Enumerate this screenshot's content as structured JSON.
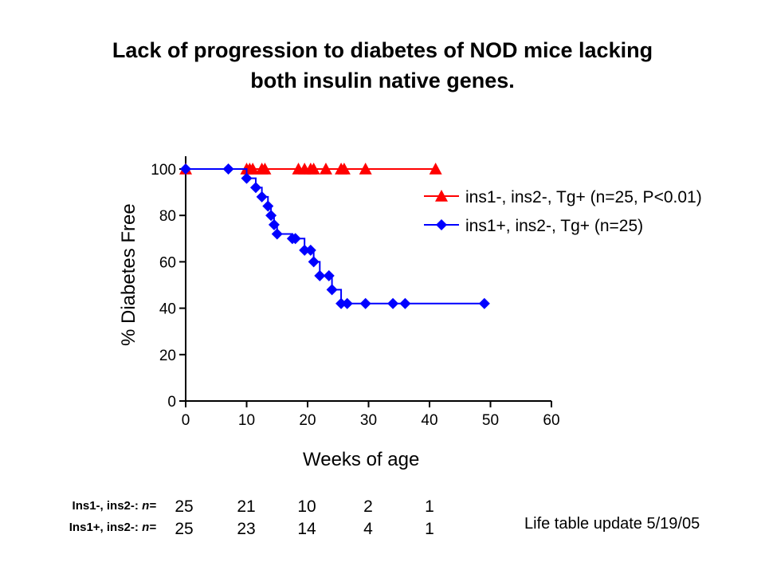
{
  "title_line1": "Lack of progression to diabetes of NOD mice lacking",
  "title_line2": "both insulin native genes.",
  "footnote": "Life table update 5/19/05",
  "risk_table": {
    "row1_label": "Ins1-, ins2-: ",
    "row1_n": "n=",
    "row1_values": [
      "25",
      "21",
      "10",
      "2",
      "1"
    ],
    "row2_label": "Ins1+, ins2-: ",
    "row2_n": "n=",
    "row2_values": [
      "25",
      "23",
      "14",
      "4",
      "1"
    ]
  },
  "chart_data": {
    "type": "line",
    "title": "",
    "xlabel": "Weeks of age",
    "ylabel": "% Diabetes Free",
    "xlim": [
      0,
      60
    ],
    "ylim": [
      0,
      100
    ],
    "xticks": [
      "0",
      "10",
      "20",
      "30",
      "40",
      "50",
      "60"
    ],
    "yticks": [
      "0",
      "20",
      "40",
      "60",
      "80",
      "100"
    ],
    "grid": false,
    "legend_position": "top-right",
    "series": [
      {
        "name": "ins1-, ins2-, Tg+ (n=25, P<0.01)",
        "color": "#ff0000",
        "marker": "triangle",
        "x": [
          0,
          10,
          10.5,
          11,
          12.5,
          13,
          18.5,
          19.5,
          20.5,
          21,
          23,
          25.5,
          26,
          29.5,
          41
        ],
        "y": [
          100,
          100,
          100,
          100,
          100,
          100,
          100,
          100,
          100,
          100,
          100,
          100,
          100,
          100,
          100
        ]
      },
      {
        "name": "ins1+, ins2-, Tg+ (n=25)",
        "color": "#0000ff",
        "marker": "diamond",
        "x": [
          0,
          7,
          10,
          11.5,
          12.5,
          13.5,
          14,
          14.5,
          15,
          17.5,
          18,
          19.5,
          20.5,
          21,
          22,
          23.5,
          24,
          25.5,
          26.5,
          29.5,
          34,
          36,
          49
        ],
        "y": [
          100,
          100,
          96,
          92,
          88,
          84,
          80,
          76,
          72,
          70,
          70,
          65,
          65,
          60,
          54,
          54,
          48,
          42,
          42,
          42,
          42,
          42,
          42
        ]
      }
    ]
  }
}
